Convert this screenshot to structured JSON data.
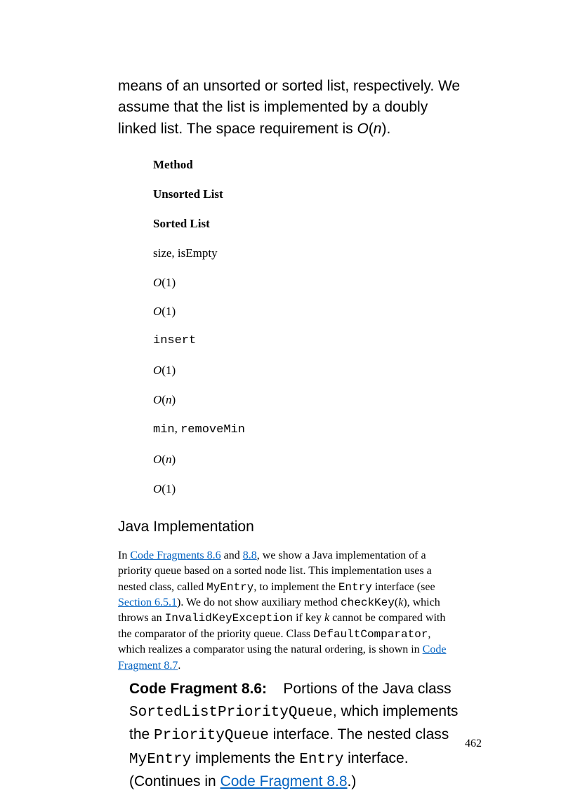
{
  "intro": {
    "part1": "means of an unsorted or sorted list, respectively. We assume that the list is implemented by a doubly linked list. The space requirement is ",
    "bigO_O": "O",
    "bigO_n": "n",
    "part2": "."
  },
  "table": {
    "header_method": "Method",
    "header_unsorted": "Unsorted List",
    "header_sorted": "Sorted List",
    "row1_method": "size, isEmpty",
    "row1_unsorted_O": "O",
    "row1_unsorted_v": "(1)",
    "row1_sorted_O": "O",
    "row1_sorted_v": "(1)",
    "row2_method": "insert",
    "row2_unsorted_O": "O",
    "row2_unsorted_v": "(1)",
    "row2_sorted_O": "O",
    "row2_sorted_n": "n",
    "row3_method_a": "min",
    "row3_method_sep": ", ",
    "row3_method_b": "removeMin",
    "row3_unsorted_O": "O",
    "row3_unsorted_n": "n",
    "row3_sorted_O": "O",
    "row3_sorted_v": "(1)"
  },
  "heading": "Java Implementation",
  "para2": {
    "t1": "In ",
    "link1": "Code Fragments 8.6",
    "t2": " and ",
    "link2": "8.8",
    "t3": ", we show a Java implementation of a priority queue based on a sorted node list. This implementation uses a nested class, called ",
    "code1": "MyEntry",
    "t4": ", to implement the ",
    "code2": "Entry",
    "t5": " interface (see ",
    "link3": "Section 6.5.1",
    "t6": "). We do not show auxiliary method ",
    "code3": "checkKey",
    "t7": "(",
    "k": "k",
    "t8": "), which throws an ",
    "code4": "InvalidKeyException",
    "t9": " if key ",
    "k2": "k",
    "t10": " cannot be compared with the comparator of the priority queue. Class ",
    "code5": "DefaultComparator",
    "t11": ", which realizes a comparator using the natural ordering, is shown in ",
    "link4": "Code Fragment 8.7",
    "t12": "."
  },
  "cf": {
    "label": "Code Fragment 8.6:",
    "spacing": "    ",
    "t1": "Portions of the Java class ",
    "code1": "SortedListPriorityQueue",
    "t2": ", which implements the ",
    "code2": "PriorityQueue",
    "t3": " interface. The nested class ",
    "code3": "MyEntry",
    "t4": " implements the ",
    "code4": "Entry",
    "t5": " interface. (Continues in ",
    "link": "Code Fragment 8.8",
    "t6": ".)"
  },
  "pageNumber": "462"
}
